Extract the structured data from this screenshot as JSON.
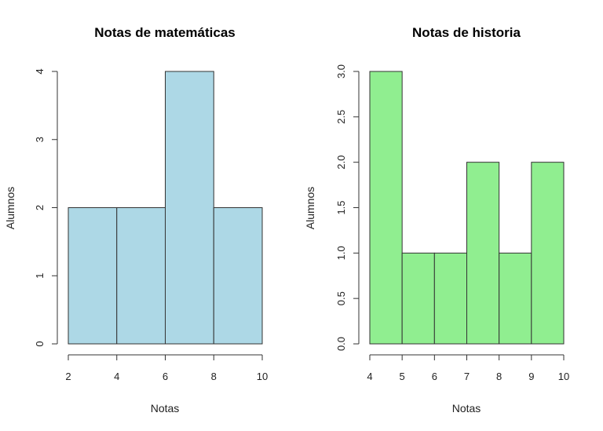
{
  "chart_data": [
    {
      "type": "bar",
      "subtype": "histogram",
      "title": "Notas de matemáticas",
      "xlabel": "Notas",
      "ylabel": "Alumnos",
      "bins": [
        [
          2,
          4
        ],
        [
          4,
          6
        ],
        [
          6,
          8
        ],
        [
          8,
          10
        ]
      ],
      "values": [
        2,
        2,
        4,
        2
      ],
      "xlim": [
        2,
        10
      ],
      "ylim": [
        0,
        4
      ],
      "x_ticks": [
        "2",
        "4",
        "6",
        "8",
        "10"
      ],
      "y_ticks": [
        "0",
        "1",
        "2",
        "3",
        "4"
      ],
      "color": "#add8e6",
      "grid": false
    },
    {
      "type": "bar",
      "subtype": "histogram",
      "title": "Notas de historia",
      "xlabel": "Notas",
      "ylabel": "Alumnos",
      "bins": [
        [
          4,
          5
        ],
        [
          5,
          6
        ],
        [
          6,
          7
        ],
        [
          7,
          8
        ],
        [
          8,
          9
        ],
        [
          9,
          10
        ]
      ],
      "values": [
        3,
        1,
        1,
        2,
        1,
        2
      ],
      "xlim": [
        4,
        10
      ],
      "ylim": [
        0,
        3
      ],
      "x_ticks": [
        "4",
        "5",
        "6",
        "7",
        "8",
        "9",
        "10"
      ],
      "y_ticks": [
        "0.0",
        "0.5",
        "1.0",
        "1.5",
        "2.0",
        "2.5",
        "3.0"
      ],
      "color": "#90ee90",
      "grid": false
    }
  ]
}
